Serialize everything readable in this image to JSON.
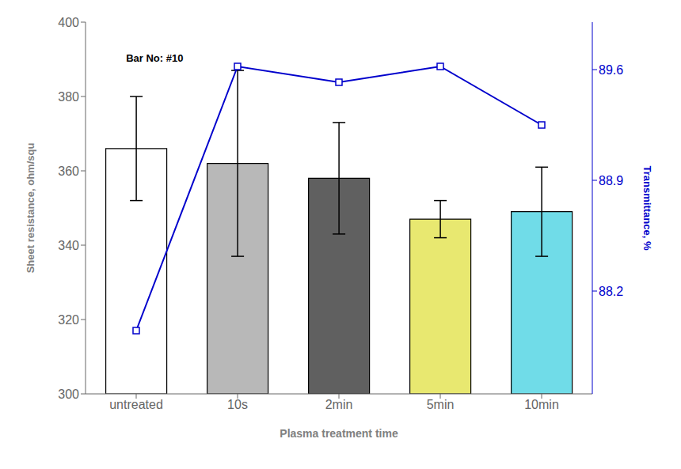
{
  "chart_data": {
    "type": "bar",
    "categories": [
      "untreated",
      "10s",
      "2min",
      "5min",
      "10min"
    ],
    "xlabel": "Plasma treatment time",
    "ylabel": "Sheet resistance, ohm/squ",
    "y2label": "Transmittance, %",
    "ylim": [
      300,
      400
    ],
    "yticks": [
      300,
      320,
      340,
      360,
      380,
      400
    ],
    "y2lim": [
      87.55,
      89.9
    ],
    "y2ticks": [
      88.2,
      88.9,
      89.6
    ],
    "annotation": "Bar No: #10",
    "grid": false,
    "series": [
      {
        "type": "bar",
        "values": [
          366,
          362,
          358,
          347,
          349
        ],
        "errors": [
          14,
          25,
          15,
          5,
          12
        ],
        "colors": [
          "white",
          "#b8b8b8",
          "#606060",
          "#e8e870",
          "#70dce8"
        ]
      },
      {
        "type": "line",
        "axis": "y2",
        "values": [
          87.95,
          89.62,
          89.52,
          89.62,
          89.25
        ],
        "color": "#0000cc",
        "marker": "square"
      }
    ]
  }
}
